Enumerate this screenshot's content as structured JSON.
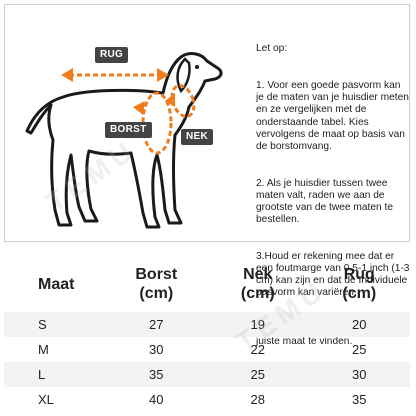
{
  "watermark": "TEMU",
  "diagram": {
    "labels": {
      "rug": "RUG",
      "borst": "BORST",
      "nek": "NEK"
    },
    "colors": {
      "accent": "#f07c1e",
      "dog_outline": "#1a1a1a",
      "tag_bg": "#444444"
    }
  },
  "instructions": {
    "lines": [
      "Let op:",
      "1. Voor een goede pasvorm kan je de maten van je huisdier meten en ze vergelijken met de onderstaande tabel. Kies vervolgens de maat op basis van de borstomvang.",
      "2. Als je huisdier tussen twee maten valt, raden we aan de grootste van de twee maten te bestellen.",
      "3.Houd er rekening mee dat er een foutmarge van 0.5-1 inch (1-3 cm) kan zijn en dat de Individuele pasvorm kan variëren.",
      "Dit zijn slechts suggesties om de juiste maat te vinden."
    ]
  },
  "table": {
    "headers": [
      {
        "name": "Maat",
        "unit": ""
      },
      {
        "name": "Borst",
        "unit": "(cm)"
      },
      {
        "name": "Nek",
        "unit": "(cm)"
      },
      {
        "name": "Rug",
        "unit": "(cm)"
      }
    ],
    "rows": [
      [
        "S",
        "27",
        "19",
        "20"
      ],
      [
        "M",
        "30",
        "22",
        "25"
      ],
      [
        "L",
        "35",
        "25",
        "30"
      ],
      [
        "XL",
        "40",
        "28",
        "35"
      ]
    ]
  }
}
